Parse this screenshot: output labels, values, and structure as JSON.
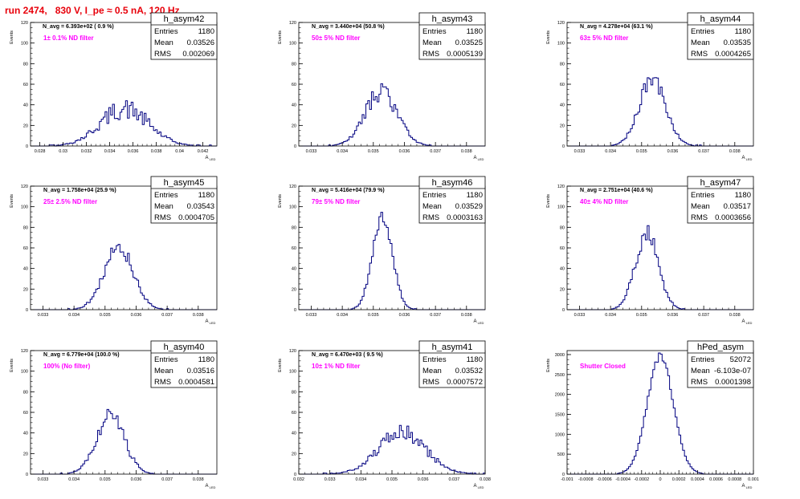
{
  "header": {
    "title": "run 2474,   830 V, I_pe ≈ 0.5 nA, 120 Hz"
  },
  "colors": {
    "histogram": "#000080",
    "frame": "#000000",
    "annotation": "#ff00ff",
    "title": "#e8000b"
  },
  "common": {
    "ylabel": "Events",
    "xlabel": "A",
    "xlabel_sub": "LED",
    "stat_labels": [
      "Entries",
      "Mean",
      "RMS"
    ]
  },
  "chart_data": [
    {
      "type": "bar",
      "name": "h_asym42",
      "navg": "N_avg = 6.393e+02 ( 0.9 %)",
      "filter": "1± 0.1% ND filter",
      "stats": {
        "entries": "1180",
        "mean": "0.03526",
        "rms": "0.002069"
      },
      "xlim": [
        0.0272,
        0.0432
      ],
      "ylim": [
        0,
        120
      ],
      "xticks": [
        "0.028",
        "0.03",
        "0.032",
        "0.034",
        "0.036",
        "0.038",
        "0.04",
        "0.042"
      ],
      "xtick_values": [
        0.028,
        0.03,
        0.032,
        0.034,
        0.036,
        0.038,
        0.04,
        0.042
      ],
      "yticks": [
        "0",
        "20",
        "40",
        "60",
        "80",
        "100",
        "120"
      ],
      "dist": {
        "mu": 0.03526,
        "sigma": 0.002069,
        "peak": 36,
        "noise": 0.28,
        "seed": 42
      }
    },
    {
      "type": "bar",
      "name": "h_asym43",
      "navg": "N_avg = 3.440e+04 (50.8 %)",
      "filter": "50± 5% ND filter",
      "stats": {
        "entries": "1180",
        "mean": "0.03525",
        "rms": "0.0005139"
      },
      "xlim": [
        0.0326,
        0.0386
      ],
      "ylim": [
        0,
        120
      ],
      "xticks": [
        "0.033",
        "0.034",
        "0.035",
        "0.036",
        "0.037",
        "0.038"
      ],
      "xtick_values": [
        0.033,
        0.034,
        0.035,
        0.036,
        0.037,
        0.038
      ],
      "yticks": [
        "0",
        "20",
        "40",
        "60",
        "80",
        "100",
        "120"
      ],
      "dist": {
        "mu": 0.03525,
        "sigma": 0.00052,
        "peak": 52,
        "noise": 0.18,
        "seed": 43
      }
    },
    {
      "type": "bar",
      "name": "h_asym44",
      "navg": "N_avg = 4.278e+04 (63.1 %)",
      "filter": "63± 5% ND filter",
      "stats": {
        "entries": "1180",
        "mean": "0.03535",
        "rms": "0.0004265"
      },
      "xlim": [
        0.0326,
        0.0386
      ],
      "ylim": [
        0,
        120
      ],
      "xticks": [
        "0.033",
        "0.034",
        "0.035",
        "0.036",
        "0.037",
        "0.038"
      ],
      "xtick_values": [
        0.033,
        0.034,
        0.035,
        0.036,
        0.037,
        0.038
      ],
      "yticks": [
        "0",
        "20",
        "40",
        "60",
        "80",
        "100",
        "120"
      ],
      "dist": {
        "mu": 0.03535,
        "sigma": 0.00043,
        "peak": 64,
        "noise": 0.14,
        "seed": 44
      }
    },
    {
      "type": "bar",
      "name": "h_asym45",
      "navg": "N_avg = 1.758e+04 (25.9 %)",
      "filter": "25± 2.5% ND filter",
      "stats": {
        "entries": "1180",
        "mean": "0.03543",
        "rms": "0.0004705"
      },
      "xlim": [
        0.0326,
        0.0386
      ],
      "ylim": [
        0,
        120
      ],
      "xticks": [
        "0.033",
        "0.034",
        "0.035",
        "0.036",
        "0.037",
        "0.038"
      ],
      "xtick_values": [
        0.033,
        0.034,
        0.035,
        0.036,
        0.037,
        0.038
      ],
      "yticks": [
        "0",
        "20",
        "40",
        "60",
        "80",
        "100",
        "120"
      ],
      "dist": {
        "mu": 0.03543,
        "sigma": 0.00047,
        "peak": 60,
        "noise": 0.16,
        "seed": 45
      }
    },
    {
      "type": "bar",
      "name": "h_asym46",
      "navg": "N_avg = 5.416e+04 (79.9 %)",
      "filter": "79± 5% ND filter",
      "stats": {
        "entries": "1180",
        "mean": "0.03529",
        "rms": "0.0003163"
      },
      "xlim": [
        0.0326,
        0.0386
      ],
      "ylim": [
        0,
        120
      ],
      "xticks": [
        "0.033",
        "0.034",
        "0.035",
        "0.036",
        "0.037",
        "0.038"
      ],
      "xtick_values": [
        0.033,
        0.034,
        0.035,
        0.036,
        0.037,
        0.038
      ],
      "yticks": [
        "0",
        "20",
        "40",
        "60",
        "80",
        "100",
        "120"
      ],
      "dist": {
        "mu": 0.03529,
        "sigma": 0.00032,
        "peak": 88,
        "noise": 0.12,
        "seed": 46
      }
    },
    {
      "type": "bar",
      "name": "h_asym47",
      "navg": "N_avg = 2.751e+04 (40.6 %)",
      "filter": "40± 4% ND filter",
      "stats": {
        "entries": "1180",
        "mean": "0.03517",
        "rms": "0.0003656"
      },
      "xlim": [
        0.0326,
        0.0386
      ],
      "ylim": [
        0,
        120
      ],
      "xticks": [
        "0.033",
        "0.034",
        "0.035",
        "0.036",
        "0.037",
        "0.038"
      ],
      "xtick_values": [
        0.033,
        0.034,
        0.035,
        0.036,
        0.037,
        0.038
      ],
      "yticks": [
        "0",
        "20",
        "40",
        "60",
        "80",
        "100",
        "120"
      ],
      "dist": {
        "mu": 0.03517,
        "sigma": 0.00037,
        "peak": 74,
        "noise": 0.12,
        "seed": 47
      }
    },
    {
      "type": "bar",
      "name": "h_asym40",
      "navg": "N_avg = 6.779e+04 (100.0 %)",
      "filter": "100% (No filter)",
      "stats": {
        "entries": "1180",
        "mean": "0.03516",
        "rms": "0.0004581"
      },
      "xlim": [
        0.0326,
        0.0386
      ],
      "ylim": [
        0,
        120
      ],
      "xticks": [
        "0.033",
        "0.034",
        "0.035",
        "0.036",
        "0.037",
        "0.038"
      ],
      "xtick_values": [
        0.033,
        0.034,
        0.035,
        0.036,
        0.037,
        0.038
      ],
      "yticks": [
        "0",
        "20",
        "40",
        "60",
        "80",
        "100",
        "120"
      ],
      "dist": {
        "mu": 0.03516,
        "sigma": 0.00046,
        "peak": 56,
        "noise": 0.17,
        "seed": 40
      }
    },
    {
      "type": "bar",
      "name": "h_asym41",
      "navg": "N_avg = 6.470e+03 ( 9.5 %)",
      "filter": "10± 1% ND filter",
      "stats": {
        "entries": "1180",
        "mean": "0.03532",
        "rms": "0.0007572"
      },
      "xlim": [
        0.032,
        0.038
      ],
      "ylim": [
        0,
        120
      ],
      "xticks": [
        "0.032",
        "0.033",
        "0.034",
        "0.035",
        "0.036",
        "0.037",
        "0.038"
      ],
      "xtick_values": [
        0.032,
        0.033,
        0.034,
        0.035,
        0.036,
        0.037,
        0.038
      ],
      "yticks": [
        "0",
        "20",
        "40",
        "60",
        "80",
        "100",
        "120"
      ],
      "dist": {
        "mu": 0.03532,
        "sigma": 0.00076,
        "peak": 40,
        "noise": 0.22,
        "seed": 41
      }
    },
    {
      "type": "bar",
      "name": "hPed_asym",
      "navg": "",
      "filter": "Shutter Closed",
      "stats": {
        "entries": "52072",
        "mean": "-6.103e-07",
        "rms": "0.0001398"
      },
      "xlim": [
        -0.001,
        0.001
      ],
      "ylim": [
        0,
        3100
      ],
      "xticks": [
        "-0.001",
        "-0.0008",
        "-0.0006",
        "-0.0004",
        "-0.0002",
        "0",
        "0.0002",
        "0.0004",
        "0.0006",
        "0.0008",
        "0.001"
      ],
      "xtick_values": [
        -0.001,
        -0.0008,
        -0.0006,
        -0.0004,
        -0.0002,
        0,
        0.0002,
        0.0004,
        0.0006,
        0.0008,
        0.001
      ],
      "yticks": [
        "0",
        "500",
        "1000",
        "1500",
        "2000",
        "2500",
        "3000"
      ],
      "dist": {
        "mu": 0.0,
        "sigma": 0.00014,
        "peak": 2960,
        "noise": 0.03,
        "seed": 99
      }
    }
  ]
}
